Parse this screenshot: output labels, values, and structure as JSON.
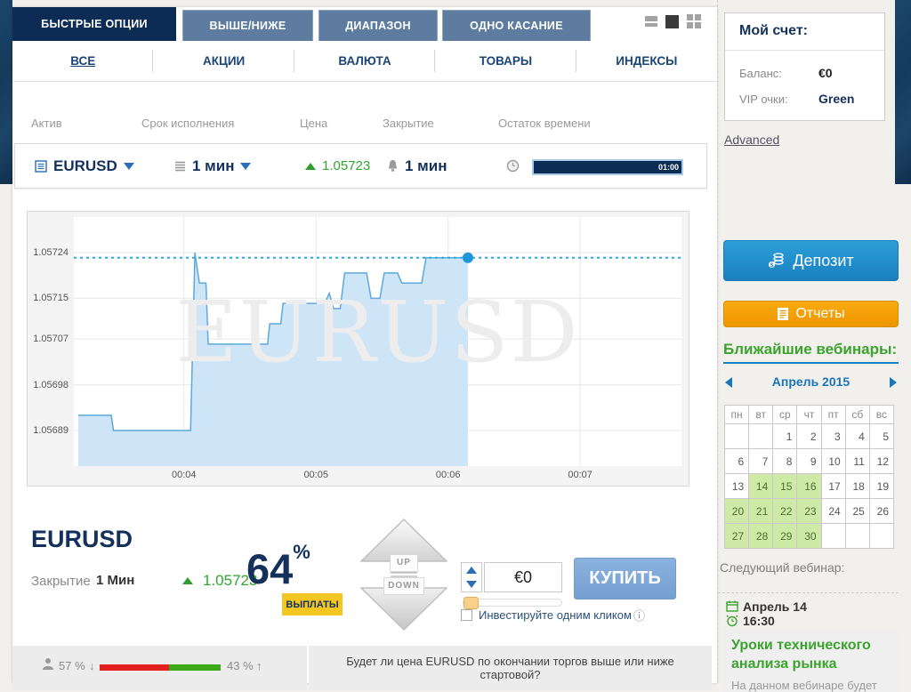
{
  "header": {
    "tabs": [
      {
        "label": "БЫСТРЫЕ ОПЦИИ",
        "active": true
      },
      {
        "label": "ВЫШЕ/НИЖЕ",
        "active": false
      },
      {
        "label": "ДИАПАЗОН",
        "active": false
      },
      {
        "label": "ОДНО КАСАНИЕ",
        "active": false
      }
    ],
    "view_icons": [
      "list-view-icon",
      "single-view-icon",
      "grid-view-icon"
    ]
  },
  "subnav": {
    "items": [
      {
        "label": "ВСЕ",
        "active": true
      },
      {
        "label": "АКЦИИ",
        "active": false
      },
      {
        "label": "ВАЛЮТА",
        "active": false
      },
      {
        "label": "ТОВАРЫ",
        "active": false
      },
      {
        "label": "ИНДЕКСЫ",
        "active": false
      }
    ]
  },
  "columns": [
    "Актив",
    "Срок исполнения",
    "Цена",
    "Закрытие",
    "Остаток времени"
  ],
  "asset_row": {
    "asset": "EURUSD",
    "duration": "1 мин",
    "price": "1.05723",
    "closure": "1 мин",
    "timer": "01:00"
  },
  "chart_data": {
    "type": "area",
    "watermark": "EURUSD",
    "x_ticks": [
      "00:04",
      "00:05",
      "00:06",
      "00:07"
    ],
    "x_range": [
      "00:03:10",
      "00:07:46"
    ],
    "y_ticks": [
      "1.05724",
      "1.05715",
      "1.05707",
      "1.05698",
      "1.05689"
    ],
    "y_range": [
      1.05682,
      1.05731
    ],
    "current_price": 1.05723,
    "grid": true,
    "series": [
      {
        "name": "EURUSD",
        "points": [
          [
            "00:03:12",
            1.05692
          ],
          [
            "00:03:27",
            1.05692
          ],
          [
            "00:03:28",
            1.05689
          ],
          [
            "00:04:03",
            1.05689
          ],
          [
            "00:04:05",
            1.05724
          ],
          [
            "00:04:07",
            1.05718
          ],
          [
            "00:04:10",
            1.05718
          ],
          [
            "00:04:11",
            1.05706
          ],
          [
            "00:04:38",
            1.05706
          ],
          [
            "00:04:39",
            1.0571
          ],
          [
            "00:04:44",
            1.0571
          ],
          [
            "00:04:45",
            1.05714
          ],
          [
            "00:05:04",
            1.05714
          ],
          [
            "00:05:06",
            1.05716
          ],
          [
            "00:05:08",
            1.05713
          ],
          [
            "00:05:11",
            1.05713
          ],
          [
            "00:05:13",
            1.0572
          ],
          [
            "00:05:23",
            1.0572
          ],
          [
            "00:05:25",
            1.05715
          ],
          [
            "00:05:29",
            1.05715
          ],
          [
            "00:05:31",
            1.0572
          ],
          [
            "00:05:37",
            1.0572
          ],
          [
            "00:05:39",
            1.05718
          ],
          [
            "00:05:48",
            1.05718
          ],
          [
            "00:05:50",
            1.05723
          ],
          [
            "00:06:09",
            1.05723
          ]
        ]
      }
    ],
    "colors": {
      "area": "#cde5f7",
      "line": "#5da9dc",
      "dotted": "#2aa6e0",
      "dot": "#1e96d8",
      "grid": "#e8e8e8"
    }
  },
  "trade_panel": {
    "asset": "EURUSD",
    "closure_label": "Закрытие",
    "closure_value": "1 Мин",
    "price": "1.05723",
    "payout_percent": "64",
    "percent_sign": "%",
    "payouts_button": "ВЫПЛАТЫ",
    "up_label": "UP",
    "down_label": "DOWN",
    "amount": "€0",
    "one_click_label": "Инвестируйте одним кликом",
    "info_icon": "ⓘ",
    "buy_button": "КУПИТЬ"
  },
  "sentiment": {
    "down_percent": "57 %",
    "down_arrow": "↓",
    "up_percent": "43 %",
    "up_arrow": "↑",
    "down_ratio": 0.57,
    "question": "Будет ли цена EURUSD по окончании торгов выше или ниже стартовой?"
  },
  "sidebar": {
    "account": {
      "title": "Мой счет:",
      "balance_label": "Баланс:",
      "balance_value": "€0",
      "vip_label": "VIP очки:",
      "vip_value": "Green"
    },
    "advanced_link": "Advanced",
    "deposit_button": "Депозит",
    "reports_button": "Отчеты",
    "webinars_title": "Ближайшие вебинары:",
    "calendar": {
      "month": "Апрель 2015",
      "weekdays": [
        "пн",
        "вт",
        "ср",
        "чт",
        "пт",
        "сб",
        "вс"
      ],
      "weeks": [
        [
          "",
          "",
          "1",
          "2",
          "3",
          "4",
          "5"
        ],
        [
          "6",
          "7",
          "8",
          "9",
          "10",
          "11",
          "12"
        ],
        [
          "13",
          "14",
          "15",
          "16",
          "17",
          "18",
          "19"
        ],
        [
          "20",
          "21",
          "22",
          "23",
          "24",
          "25",
          "26"
        ],
        [
          "27",
          "28",
          "29",
          "30",
          "",
          "",
          ""
        ]
      ],
      "highlighted": [
        "14",
        "15",
        "16",
        "20",
        "21",
        "22",
        "23",
        "27",
        "28",
        "29",
        "30"
      ]
    },
    "next_webinar_label": "Следующий вебинар:",
    "webinar": {
      "date": "Апрель 14",
      "time": "16:30",
      "title": "Уроки технического анализа рынка",
      "description": "На данном вебинаре будет"
    }
  },
  "colors": {
    "navy": "#14315c",
    "tab_active": "#0c2b55",
    "tab_inactive": "#5d7c9f",
    "green": "#31a52f",
    "webinar_green": "#3ca32e",
    "red": "#e31e1e",
    "sent_green": "#3ba818",
    "yellow": "#f3c621",
    "deposit_blue": "#1b7fc0",
    "reports_orange": "#f7a000",
    "buy_blue": "#7ea9d8",
    "cal_highlight": "#cfeaa6"
  }
}
